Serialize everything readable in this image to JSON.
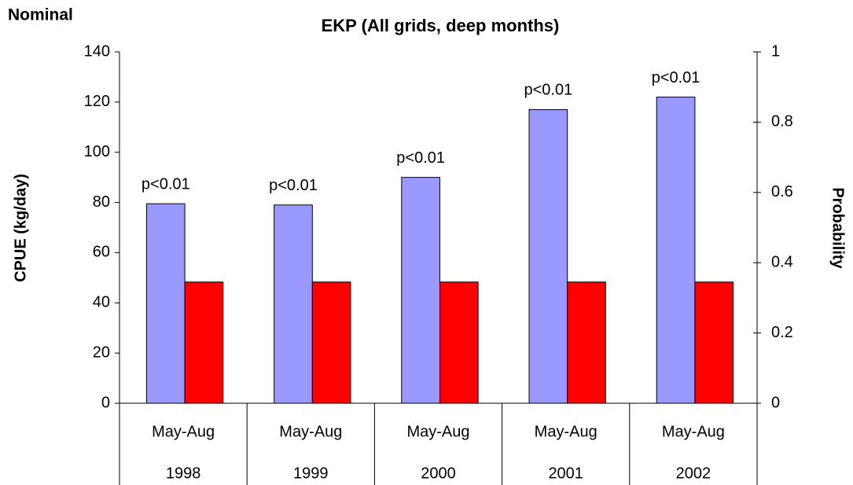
{
  "chart_data": {
    "type": "bar",
    "title": "EKP (All grids, deep months)",
    "corner_label": "Nominal",
    "y_label": "CPUE (kg/day)",
    "y2_label": "Probability",
    "categories": [
      [
        "May-Aug",
        "1998"
      ],
      [
        "May-Aug",
        "1999"
      ],
      [
        "May-Aug",
        "2000"
      ],
      [
        "May-Aug",
        "2001"
      ],
      [
        "May-Aug",
        "2002"
      ]
    ],
    "series": [
      {
        "color": "#9999ff",
        "values": [
          79.5,
          79,
          90,
          117,
          122
        ]
      },
      {
        "color": "#ff0000",
        "axis": "y2",
        "values": [
          0.345,
          0.345,
          0.345,
          0.345,
          0.345
        ]
      }
    ],
    "annotations": [
      "p<0.01",
      "p<0.01",
      "p<0.01",
      "p<0.01",
      "p<0.01"
    ],
    "ylim": [
      0,
      140
    ],
    "yticks": [
      0,
      20,
      40,
      60,
      80,
      100,
      120,
      140
    ],
    "y2lim": [
      0,
      1
    ],
    "y2ticks": [
      0,
      0.2,
      0.4,
      0.6,
      0.8,
      1
    ],
    "grid": false
  }
}
